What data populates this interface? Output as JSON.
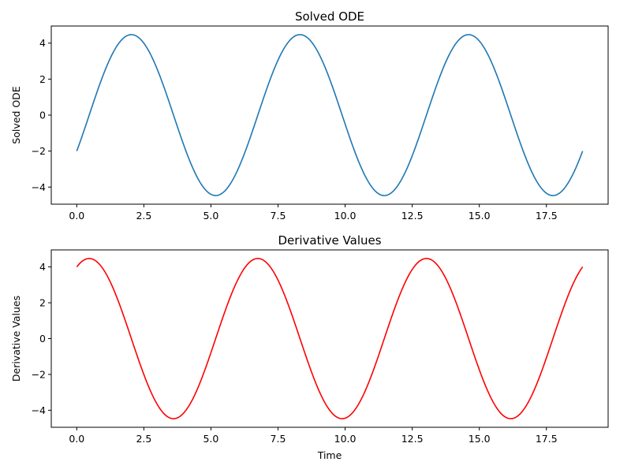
{
  "chart_data": [
    {
      "type": "line",
      "title": "Solved ODE",
      "xlabel": "",
      "ylabel": "Solved ODE",
      "xlim": [
        -0.95,
        19.8
      ],
      "ylim": [
        -4.95,
        4.95
      ],
      "xticks": [
        0.0,
        2.5,
        5.0,
        7.5,
        10.0,
        12.5,
        15.0,
        17.5
      ],
      "xtick_labels": [
        "0.0",
        "2.5",
        "5.0",
        "7.5",
        "10.0",
        "12.5",
        "15.0",
        "17.5"
      ],
      "yticks": [
        -4,
        -2,
        0,
        2,
        4
      ],
      "ytick_labels": [
        "−4",
        "−2",
        "0",
        "2",
        "4"
      ],
      "grid": false,
      "series": [
        {
          "name": "",
          "color": "#1f77b4",
          "x_range": [
            0,
            18.85
          ],
          "samples": 300,
          "formula": "y = 4*sin(t) - 2*cos(t)",
          "key_points": [
            [
              0,
              -2
            ],
            [
              2.03,
              4.47
            ],
            [
              5.18,
              -4.47
            ],
            [
              8.31,
              4.47
            ],
            [
              11.46,
              -4.47
            ],
            [
              14.6,
              4.47
            ],
            [
              17.74,
              -4.47
            ],
            [
              18.85,
              -2
            ]
          ]
        }
      ]
    },
    {
      "type": "line",
      "title": "Derivative Values",
      "xlabel": "Time",
      "ylabel": "Derivative Values",
      "xlim": [
        -0.95,
        19.8
      ],
      "ylim": [
        -4.95,
        4.95
      ],
      "xticks": [
        0.0,
        2.5,
        5.0,
        7.5,
        10.0,
        12.5,
        15.0,
        17.5
      ],
      "xtick_labels": [
        "0.0",
        "2.5",
        "5.0",
        "7.5",
        "10.0",
        "12.5",
        "15.0",
        "17.5"
      ],
      "yticks": [
        -4,
        -2,
        0,
        2,
        4
      ],
      "ytick_labels": [
        "−4",
        "−2",
        "0",
        "2",
        "4"
      ],
      "grid": false,
      "series": [
        {
          "name": "",
          "color": "#ff0000",
          "x_range": [
            0,
            18.85
          ],
          "samples": 300,
          "formula": "y = 4*cos(t) + 2*sin(t)",
          "key_points": [
            [
              0,
              4
            ],
            [
              0.46,
              4.47
            ],
            [
              3.61,
              -4.47
            ],
            [
              6.75,
              4.47
            ],
            [
              9.89,
              -4.47
            ],
            [
              13.03,
              4.47
            ],
            [
              16.17,
              -4.47
            ],
            [
              18.85,
              4
            ]
          ]
        }
      ]
    }
  ]
}
